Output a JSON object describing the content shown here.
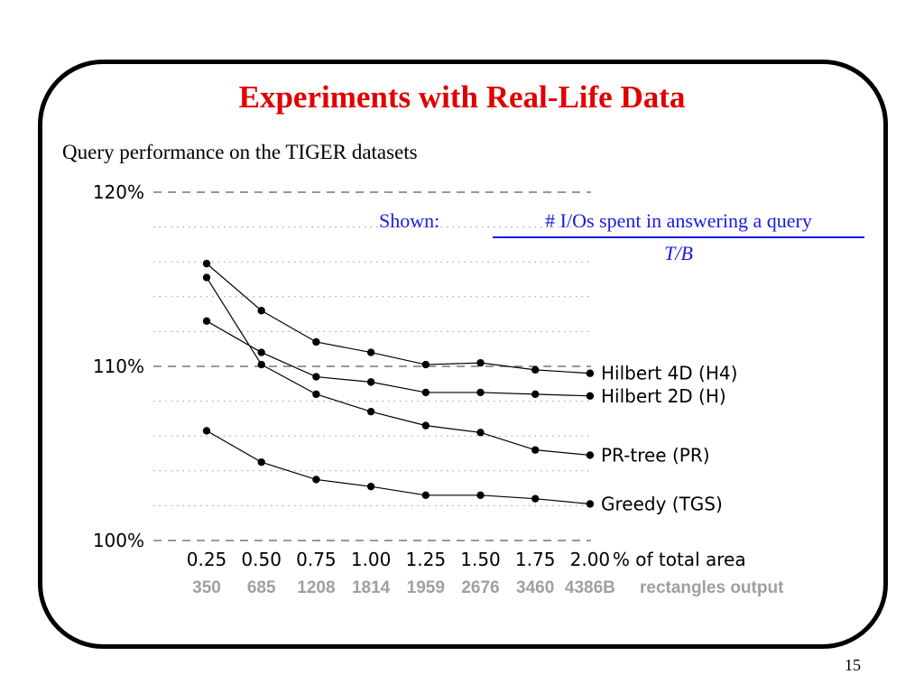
{
  "slide": {
    "title": "Experiments with Real-Life Data",
    "subtitle": "Query performance on the TIGER datasets",
    "page_number": "15"
  },
  "annotation": {
    "label": "Shown:",
    "numerator": "# I/Os spent in answering a query",
    "denominator": "T/B"
  },
  "chart_data": {
    "type": "line",
    "x": [
      0.25,
      0.5,
      0.75,
      1.0,
      1.25,
      1.5,
      1.75,
      2.0
    ],
    "x_tick_labels": [
      "0.25",
      "0.50",
      "0.75",
      "1.00",
      "1.25",
      "1.50",
      "1.75",
      "2.00"
    ],
    "x_axis_suffix": "% of total area",
    "x_secondary_tick_labels": [
      "350",
      "685",
      "1208",
      "1814",
      "1959",
      "2676",
      "3460",
      "4386B"
    ],
    "x_secondary_suffix": "rectangles output",
    "y_ticks": [
      100,
      110,
      120
    ],
    "y_tick_labels": [
      "100%",
      "110%",
      "120%"
    ],
    "ylim": [
      100,
      120
    ],
    "grid": "dotted minor, dashed major",
    "series": [
      {
        "name": "Hilbert 4D (H4)",
        "values": [
          115.9,
          113.2,
          111.4,
          110.8,
          110.1,
          110.2,
          109.8,
          109.6
        ]
      },
      {
        "name": "Hilbert 2D (H)",
        "values": [
          112.6,
          110.8,
          109.4,
          109.1,
          108.5,
          108.5,
          108.4,
          108.3
        ]
      },
      {
        "name": "PR-tree (PR)",
        "values": [
          115.1,
          110.1,
          108.4,
          107.4,
          106.6,
          106.2,
          105.2,
          104.9
        ]
      },
      {
        "name": "Greedy (TGS)",
        "values": [
          106.3,
          104.5,
          103.5,
          103.1,
          102.6,
          102.6,
          102.4,
          102.1
        ]
      }
    ]
  }
}
